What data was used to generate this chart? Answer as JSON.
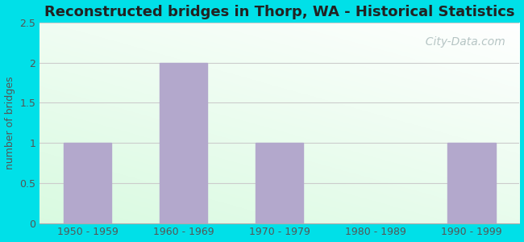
{
  "title": "Reconstructed bridges in Thorp, WA - Historical Statistics",
  "categories": [
    "1950 - 1959",
    "1960 - 1969",
    "1970 - 1979",
    "1980 - 1989",
    "1990 - 1999"
  ],
  "values": [
    1,
    2,
    1,
    0,
    1
  ],
  "bar_color": "#b3a8cc",
  "ylabel": "number of bridges",
  "ylim": [
    0,
    2.5
  ],
  "yticks": [
    0,
    0.5,
    1,
    1.5,
    2,
    2.5
  ],
  "title_fontsize": 13,
  "ylabel_fontsize": 9,
  "tick_fontsize": 9,
  "title_color": "#222222",
  "label_color": "#555555",
  "tick_color": "#555555",
  "background_outer": "#00e0e8",
  "grid_color": "#cccccc",
  "watermark_text": "  City-Data.com",
  "watermark_color": "#aabbbb",
  "watermark_fontsize": 10,
  "gradient_top_color": "#f5fff5",
  "gradient_bottom_color": "#b0f0d0"
}
